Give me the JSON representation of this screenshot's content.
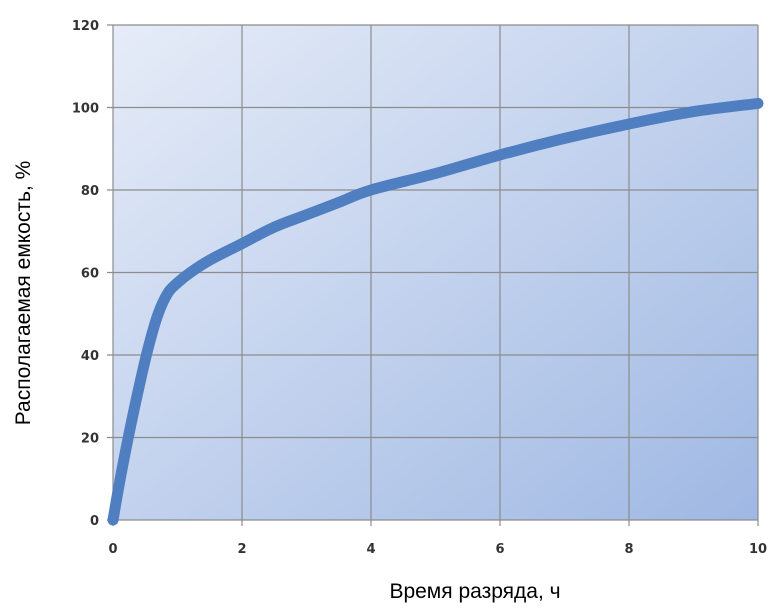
{
  "colors": {
    "series": "#4f7fc0",
    "plot_bg_light": "#e6ecf8",
    "plot_bg_dark": "#9fb8e3",
    "grid": "#8c8c8c"
  },
  "chart_data": {
    "type": "line",
    "xlabel": "Время разряда, ч",
    "ylabel": "Располагаемая емкость, %",
    "xlim": [
      0,
      10
    ],
    "ylim": [
      0,
      120
    ],
    "xticks": [
      "0",
      "2",
      "4",
      "6",
      "8",
      "10"
    ],
    "yticks": [
      "0",
      "20",
      "40",
      "60",
      "80",
      "100",
      "120"
    ],
    "grid": true,
    "series": [
      {
        "x": [
          0,
          0.1,
          0.25,
          0.4,
          0.55,
          0.7,
          0.85,
          1.0,
          1.2,
          1.5,
          2.0,
          2.5,
          3.0,
          3.5,
          4.0,
          5.0,
          6.0,
          7.0,
          8.0,
          9.0,
          10.0
        ],
        "y": [
          0,
          9,
          21,
          32,
          42,
          50,
          55,
          57.5,
          60,
          63,
          67,
          71,
          74,
          77,
          80,
          84,
          88.5,
          92.5,
          96,
          99,
          101
        ]
      }
    ]
  }
}
